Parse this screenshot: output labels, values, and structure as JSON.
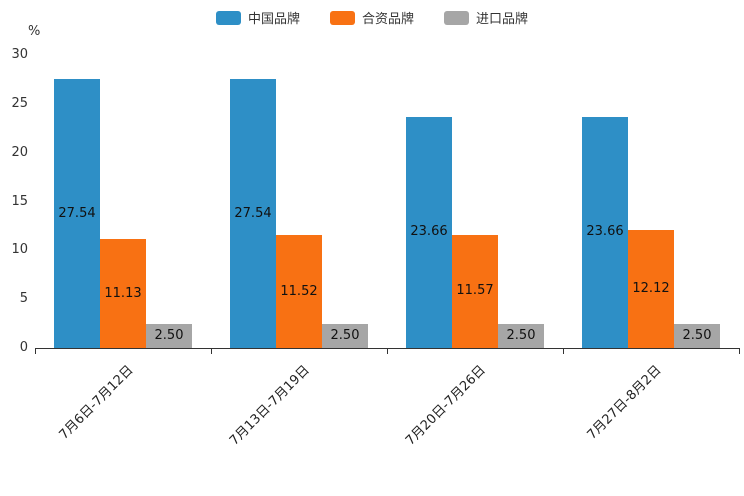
{
  "chart_data": {
    "type": "bar",
    "title": "",
    "ylabel": "%",
    "xlabel": "",
    "ylim": [
      0,
      30
    ],
    "yticks": [
      0,
      5,
      10,
      15,
      20,
      25,
      30
    ],
    "grid": false,
    "legend_position": "top",
    "categories": [
      "7月6日-7月12日",
      "7月13日-7月19日",
      "7月20日-7月26日",
      "7月27日-8月2日"
    ],
    "series": [
      {
        "name": "中国品牌",
        "color": "#2E8FC6",
        "values": [
          27.54,
          27.54,
          23.66,
          23.66
        ],
        "labels": [
          "27.54",
          "27.54",
          "23.66",
          "23.66"
        ]
      },
      {
        "name": "合资品牌",
        "color": "#F87113",
        "values": [
          11.13,
          11.52,
          11.57,
          12.12
        ],
        "labels": [
          "11.13",
          "11.52",
          "11.57",
          "12.12"
        ]
      },
      {
        "name": "进口品牌",
        "color": "#A6A6A6",
        "values": [
          2.5,
          2.5,
          2.5,
          2.5
        ],
        "labels": [
          "2.50",
          "2.50",
          "2.50",
          "2.50"
        ]
      }
    ]
  }
}
